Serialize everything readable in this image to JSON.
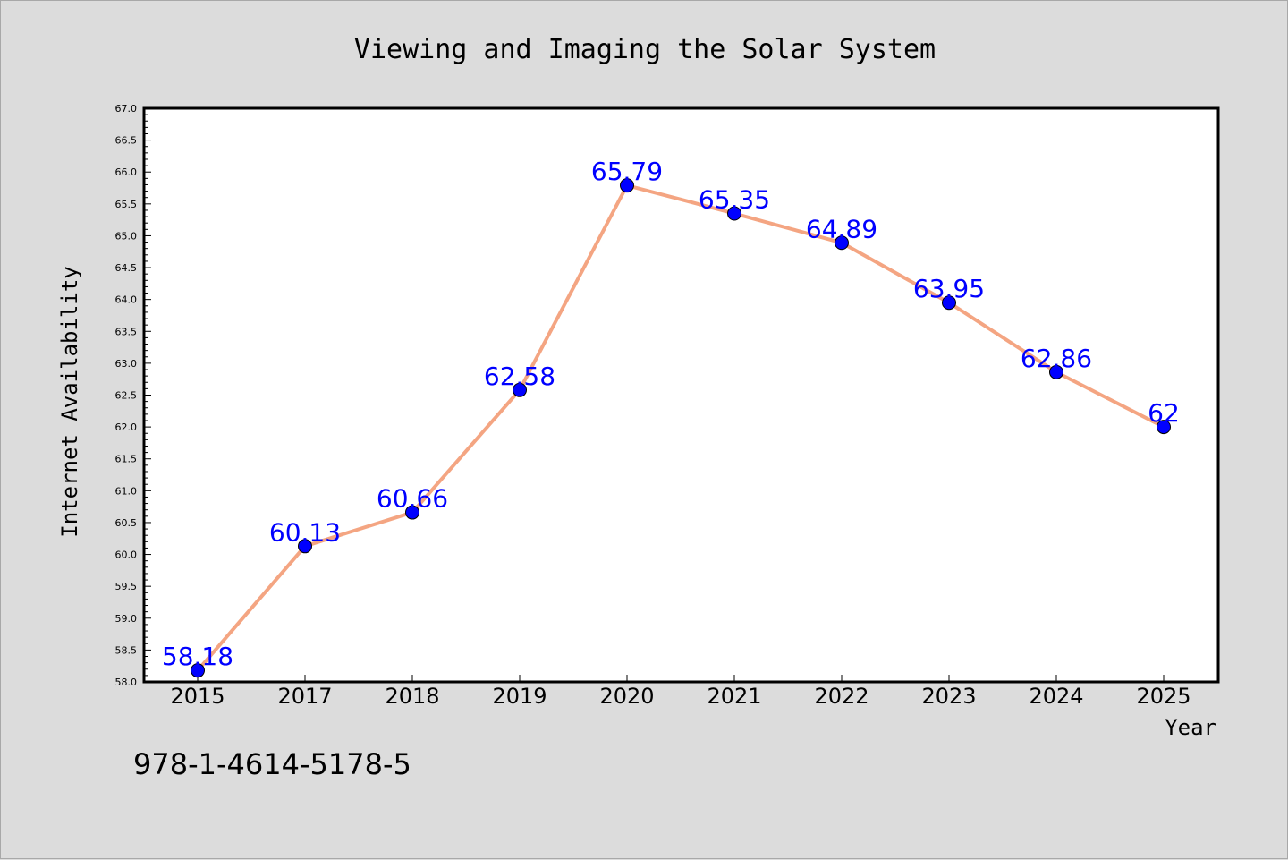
{
  "chart_data": {
    "type": "line",
    "title": "Viewing and Imaging the Solar System",
    "xlabel": "Year",
    "ylabel": "Internet Availability",
    "categories": [
      "2015",
      "2017",
      "2018",
      "2019",
      "2020",
      "2021",
      "2022",
      "2023",
      "2024",
      "2025"
    ],
    "series": [
      {
        "values": [
          58.18,
          60.13,
          60.66,
          62.58,
          65.79,
          65.35,
          64.89,
          63.95,
          62.86,
          62.0
        ]
      }
    ],
    "data_labels": [
      "58.18",
      "60.13",
      "60.66",
      "62.58",
      "65.79",
      "65.35",
      "64.89",
      "63.95",
      "62.86",
      "62"
    ],
    "ylim": [
      58.0,
      67.0
    ],
    "yticks": [
      "58.0",
      "58.5",
      "59.0",
      "59.5",
      "60.0",
      "60.5",
      "61.0",
      "61.5",
      "62.0",
      "62.5",
      "63.0",
      "63.5",
      "64.0",
      "64.5",
      "65.0",
      "65.5",
      "66.0",
      "66.5",
      "67.0"
    ],
    "grid": false,
    "colors": {
      "line": "#f4a582",
      "marker": "#0000ff",
      "label": "#0000ff",
      "background": "#dcdcdc",
      "plot_area": "#ffffff"
    }
  },
  "footer_text": "978-1-4614-5178-5"
}
